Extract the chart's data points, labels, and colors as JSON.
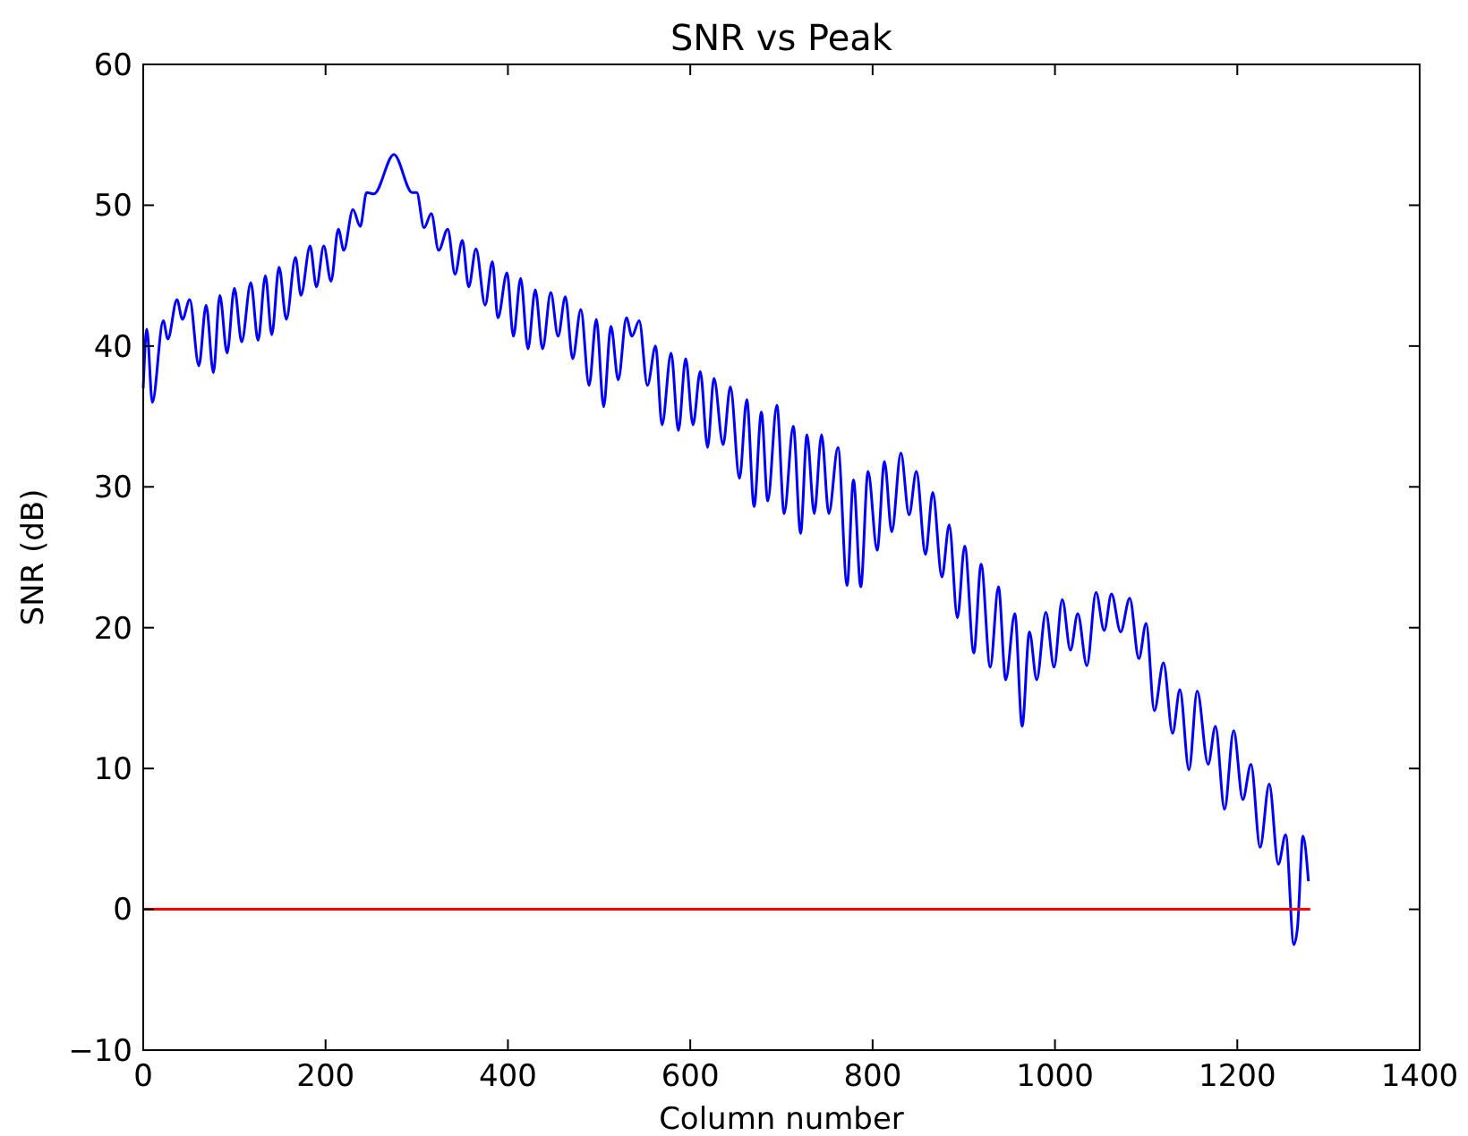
{
  "chart_data": {
    "type": "line",
    "title": "SNR vs Peak",
    "xlabel": "Column number",
    "ylabel": "SNR (dB)",
    "xlim": [
      0,
      1400
    ],
    "xticks": [
      0,
      200,
      400,
      600,
      800,
      1000,
      1200,
      1400
    ],
    "ylim": [
      -10,
      60
    ],
    "yticks": [
      -10,
      0,
      10,
      20,
      30,
      40,
      50,
      60
    ],
    "grid": false,
    "series": [
      {
        "color": "#0000ff",
        "x": [
          0,
          4,
          10,
          22,
          27,
          37,
          43,
          51,
          61,
          69,
          77,
          84,
          92,
          100,
          108,
          118,
          126,
          134,
          141,
          149,
          157,
          167,
          173,
          183,
          190,
          198,
          206,
          214,
          220,
          230,
          238,
          245,
          253,
          275,
          295,
          300,
          308,
          316,
          324,
          334,
          342,
          350,
          357,
          365,
          375,
          383,
          389,
          399,
          406,
          414,
          422,
          430,
          438,
          447,
          455,
          463,
          471,
          480,
          489,
          497,
          505,
          513,
          521,
          530,
          536,
          544,
          553,
          562,
          569,
          579,
          587,
          595,
          603,
          611,
          619,
          626,
          636,
          644,
          654,
          662,
          670,
          678,
          685,
          695,
          703,
          713,
          721,
          728,
          736,
          744,
          752,
          762,
          772,
          779,
          787,
          795,
          805,
          813,
          821,
          831,
          840,
          848,
          858,
          866,
          876,
          884,
          893,
          901,
          911,
          919,
          929,
          938,
          946,
          956,
          964,
          972,
          980,
          990,
          999,
          1008,
          1017,
          1025,
          1035,
          1045,
          1054,
          1062,
          1072,
          1082,
          1092,
          1100,
          1109,
          1119,
          1129,
          1137,
          1147,
          1156,
          1168,
          1176,
          1186,
          1196,
          1206,
          1215,
          1225,
          1235,
          1245,
          1253,
          1262,
          1266,
          1272,
          1278
        ],
        "values": [
          37,
          41.2,
          36,
          41.8,
          40.5,
          43.3,
          41.9,
          43.3,
          38.6,
          42.9,
          38.1,
          43.6,
          39.5,
          44.1,
          40.3,
          44.5,
          40.4,
          45,
          40.8,
          45.6,
          41.9,
          46.3,
          43.6,
          47.1,
          44.2,
          47.1,
          44.6,
          48.3,
          46.8,
          49.7,
          48.5,
          50.9,
          50.8,
          53.6,
          50.9,
          50.9,
          48.4,
          49.4,
          46.8,
          48.3,
          45.1,
          47.5,
          44.2,
          46.9,
          42.9,
          46,
          42,
          45.2,
          40.7,
          44.8,
          39.8,
          44,
          39.8,
          43.8,
          40.7,
          43.5,
          39.1,
          42.6,
          37.2,
          41.9,
          35.7,
          41.4,
          37.6,
          42,
          40.7,
          41.8,
          37.2,
          40,
          34.4,
          39.5,
          34,
          39.1,
          34.4,
          38.2,
          32.8,
          37.7,
          33,
          37.1,
          30.6,
          36.2,
          28.6,
          35.3,
          29,
          35.8,
          28.1,
          34.3,
          26.7,
          33.7,
          28.1,
          33.7,
          28.1,
          32.8,
          23,
          30.5,
          22.9,
          31.1,
          25.5,
          31.8,
          26.8,
          32.4,
          28,
          31.1,
          25.2,
          29.6,
          23.6,
          27.3,
          20.7,
          25.8,
          18.2,
          24.5,
          17.2,
          22.9,
          16.3,
          21,
          13,
          19.7,
          16.3,
          21.1,
          17.2,
          22,
          18.4,
          21,
          17.3,
          22.5,
          19.8,
          22.4,
          19.7,
          22.1,
          17.8,
          20.3,
          14.1,
          17.5,
          12.5,
          15.6,
          9.9,
          15.5,
          10.3,
          13,
          7.1,
          12.7,
          7.8,
          10.3,
          4.4,
          8.9,
          3.2,
          5.3,
          -2.5,
          -1.3,
          5.2,
          2
        ]
      },
      {
        "color": "#ff0000",
        "x": [
          0,
          1280
        ],
        "values": [
          0,
          0
        ]
      }
    ]
  }
}
